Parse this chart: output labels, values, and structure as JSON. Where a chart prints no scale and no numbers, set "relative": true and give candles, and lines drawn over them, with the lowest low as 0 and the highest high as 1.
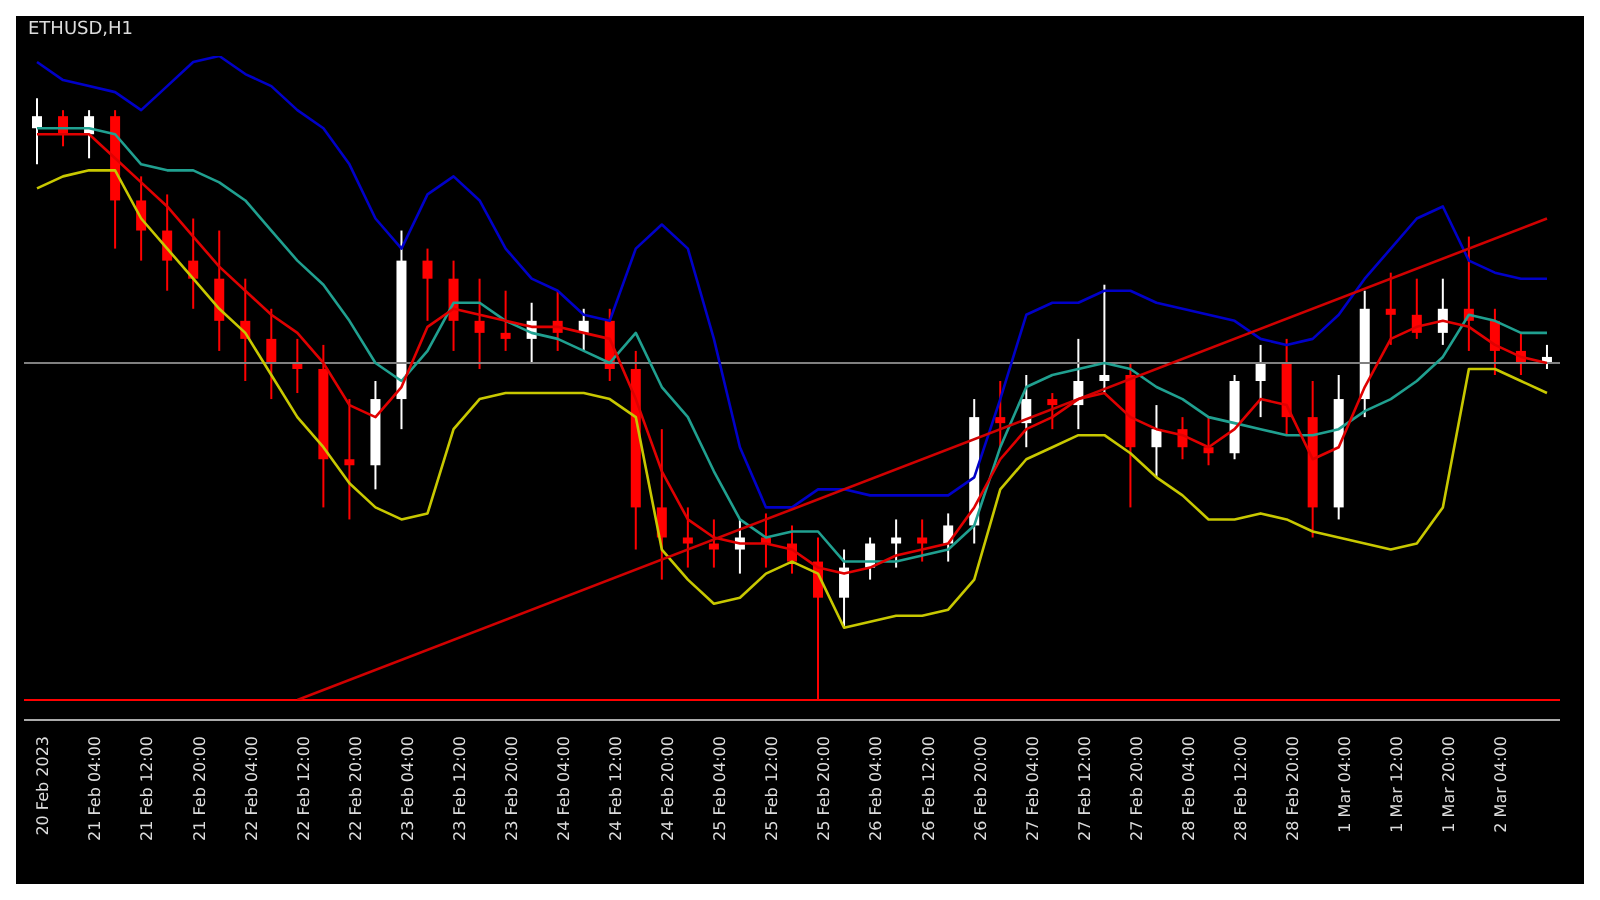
{
  "chart_data": {
    "type": "candlestick",
    "title": "ETHUSD,H1",
    "relative": true,
    "categories": [
      "20 Feb 2023",
      null,
      "21 Feb 04:00",
      null,
      "21 Feb 12:00",
      null,
      "21 Feb 20:00",
      null,
      "22 Feb 04:00",
      null,
      "22 Feb 12:00",
      null,
      "22 Feb 20:00",
      null,
      "23 Feb 04:00",
      null,
      "23 Feb 12:00",
      null,
      "23 Feb 20:00",
      null,
      "24 Feb 04:00",
      null,
      "24 Feb 12:00",
      null,
      "24 Feb 20:00",
      null,
      "25 Feb 04:00",
      null,
      "25 Feb 12:00",
      null,
      "25 Feb 20:00",
      null,
      "26 Feb 04:00",
      null,
      "26 Feb 12:00",
      null,
      "26 Feb 20:00",
      null,
      "27 Feb 04:00",
      null,
      "27 Feb 12:00",
      null,
      "27 Feb 20:00",
      null,
      "28 Feb 04:00",
      null,
      "28 Feb 12:00",
      null,
      "28 Feb 20:00",
      null,
      "1 Mar 04:00",
      null,
      "1 Mar 12:00",
      null,
      "1 Mar 20:00",
      null,
      "2 Mar 04:00",
      null,
      null
    ],
    "ohlc": [
      [
        0.95,
        1,
        0.89,
        0.97
      ],
      [
        0.97,
        0.98,
        0.92,
        0.94
      ],
      [
        0.94,
        0.98,
        0.9,
        0.97
      ],
      [
        0.97,
        0.98,
        0.75,
        0.83
      ],
      [
        0.83,
        0.87,
        0.73,
        0.78
      ],
      [
        0.78,
        0.84,
        0.68,
        0.73
      ],
      [
        0.73,
        0.8,
        0.65,
        0.7
      ],
      [
        0.7,
        0.78,
        0.58,
        0.63
      ],
      [
        0.63,
        0.7,
        0.53,
        0.6
      ],
      [
        0.6,
        0.65,
        0.5,
        0.56
      ],
      [
        0.56,
        0.6,
        0.51,
        0.55
      ],
      [
        0.55,
        0.59,
        0.32,
        0.4
      ],
      [
        0.4,
        0.5,
        0.3,
        0.39
      ],
      [
        0.39,
        0.53,
        0.35,
        0.5
      ],
      [
        0.5,
        0.78,
        0.45,
        0.73
      ],
      [
        0.73,
        0.75,
        0.63,
        0.7
      ],
      [
        0.7,
        0.73,
        0.58,
        0.63
      ],
      [
        0.63,
        0.7,
        0.55,
        0.61
      ],
      [
        0.61,
        0.68,
        0.58,
        0.6
      ],
      [
        0.6,
        0.66,
        0.56,
        0.63
      ],
      [
        0.63,
        0.68,
        0.58,
        0.61
      ],
      [
        0.61,
        0.65,
        0.58,
        0.63
      ],
      [
        0.63,
        0.65,
        0.53,
        0.55
      ],
      [
        0.55,
        0.58,
        0.25,
        0.32
      ],
      [
        0.32,
        0.45,
        0.2,
        0.27
      ],
      [
        0.27,
        0.32,
        0.22,
        0.26
      ],
      [
        0.26,
        0.3,
        0.22,
        0.25
      ],
      [
        0.25,
        0.3,
        0.21,
        0.27
      ],
      [
        0.27,
        0.31,
        0.22,
        0.26
      ],
      [
        0.26,
        0.29,
        0.21,
        0.23
      ],
      [
        0.23,
        0.27,
        0,
        0.17
      ],
      [
        0.17,
        0.25,
        0.12,
        0.22
      ],
      [
        0.22,
        0.27,
        0.2,
        0.26
      ],
      [
        0.26,
        0.3,
        0.22,
        0.27
      ],
      [
        0.27,
        0.3,
        0.23,
        0.26
      ],
      [
        0.26,
        0.31,
        0.23,
        0.29
      ],
      [
        0.29,
        0.5,
        0.26,
        0.47
      ],
      [
        0.47,
        0.53,
        0.42,
        0.46
      ],
      [
        0.46,
        0.54,
        0.42,
        0.5
      ],
      [
        0.5,
        0.51,
        0.45,
        0.49
      ],
      [
        0.49,
        0.6,
        0.45,
        0.53
      ],
      [
        0.53,
        0.69,
        0.51,
        0.54
      ],
      [
        0.54,
        0.56,
        0.32,
        0.42
      ],
      [
        0.42,
        0.49,
        0.37,
        0.45
      ],
      [
        0.45,
        0.47,
        0.4,
        0.42
      ],
      [
        0.42,
        0.47,
        0.39,
        0.41
      ],
      [
        0.41,
        0.54,
        0.4,
        0.53
      ],
      [
        0.53,
        0.59,
        0.47,
        0.56
      ],
      [
        0.56,
        0.6,
        0.44,
        0.47
      ],
      [
        0.47,
        0.53,
        0.27,
        0.32
      ],
      [
        0.32,
        0.54,
        0.3,
        0.5
      ],
      [
        0.5,
        0.68,
        0.47,
        0.65
      ],
      [
        0.65,
        0.71,
        0.59,
        0.64
      ],
      [
        0.64,
        0.7,
        0.6,
        0.61
      ],
      [
        0.61,
        0.7,
        0.59,
        0.65
      ],
      [
        0.65,
        0.77,
        0.58,
        0.63
      ],
      [
        0.63,
        0.65,
        0.54,
        0.58
      ],
      [
        0.58,
        0.61,
        0.54,
        0.56
      ],
      [
        0.56,
        0.59,
        0.55,
        0.57
      ]
    ],
    "colors": [
      "#ffffff",
      "#ff0000",
      "#ffffff",
      "#ff0000",
      "#ff0000",
      "#ff0000",
      "#ff0000",
      "#ff0000",
      "#ff0000",
      "#ff0000",
      "#ff0000",
      "#ff0000",
      "#ff0000",
      "#ffffff",
      "#ffffff",
      "#ff0000",
      "#ff0000",
      "#ff0000",
      "#ff0000",
      "#ffffff",
      "#ff0000",
      "#ffffff",
      "#ff0000",
      "#ff0000",
      "#ff0000",
      "#ff0000",
      "#ff0000",
      "#ffffff",
      "#ff0000",
      "#ff0000",
      "#ff0000",
      "#ffffff",
      "#ffffff",
      "#ffffff",
      "#ff0000",
      "#ffffff",
      "#ffffff",
      "#ff0000",
      "#ffffff",
      "#ff0000",
      "#ffffff",
      "#ffffff",
      "#ff0000",
      "#ffffff",
      "#ff0000",
      "#ff0000",
      "#ffffff",
      "#ffffff",
      "#ff0000",
      "#ff0000",
      "#ffffff",
      "#ffffff",
      "#ff0000",
      "#ff0000",
      "#ffffff",
      "#ff0000",
      "#ff0000",
      "#ff0000",
      "#ffffff"
    ],
    "series": [
      {
        "type": "line",
        "color": "#0000c8",
        "values": [
          1.06,
          1.03,
          1.02,
          1.01,
          0.98,
          1.02,
          1.06,
          1.07,
          1.04,
          1.02,
          0.98,
          0.95,
          0.89,
          0.8,
          0.75,
          0.84,
          0.87,
          0.83,
          0.75,
          0.7,
          0.68,
          0.64,
          0.63,
          0.75,
          0.79,
          0.75,
          0.6,
          0.42,
          0.32,
          0.32,
          0.35,
          0.35,
          0.34,
          0.34,
          0.34,
          0.34,
          0.37,
          0.5,
          0.64,
          0.66,
          0.66,
          0.68,
          0.68,
          0.66,
          0.65,
          0.64,
          0.63,
          0.6,
          0.59,
          0.6,
          0.64,
          0.7,
          0.75,
          0.8,
          0.82,
          0.73,
          0.71,
          0.7,
          0.7
        ]
      },
      {
        "type": "line",
        "color": "#c8c800",
        "values": [
          0.85,
          0.87,
          0.88,
          0.88,
          0.8,
          0.75,
          0.7,
          0.65,
          0.61,
          0.54,
          0.47,
          0.42,
          0.36,
          0.32,
          0.3,
          0.31,
          0.45,
          0.5,
          0.51,
          0.51,
          0.51,
          0.51,
          0.5,
          0.47,
          0.25,
          0.2,
          0.16,
          0.17,
          0.21,
          0.23,
          0.21,
          0.12,
          0.13,
          0.14,
          0.14,
          0.15,
          0.2,
          0.35,
          0.4,
          0.42,
          0.44,
          0.44,
          0.41,
          0.37,
          0.34,
          0.3,
          0.3,
          0.31,
          0.3,
          0.28,
          0.27,
          0.26,
          0.25,
          0.26,
          0.32,
          0.55,
          0.55,
          0.53,
          0.51
        ]
      },
      {
        "type": "line",
        "color": "#20a090",
        "values": [
          0.95,
          0.95,
          0.95,
          0.94,
          0.89,
          0.88,
          0.88,
          0.86,
          0.83,
          0.78,
          0.73,
          0.69,
          0.63,
          0.56,
          0.53,
          0.58,
          0.66,
          0.66,
          0.63,
          0.61,
          0.6,
          0.58,
          0.56,
          0.61,
          0.52,
          0.47,
          0.38,
          0.3,
          0.27,
          0.28,
          0.28,
          0.23,
          0.23,
          0.23,
          0.24,
          0.25,
          0.29,
          0.42,
          0.52,
          0.54,
          0.55,
          0.56,
          0.55,
          0.52,
          0.5,
          0.47,
          0.46,
          0.45,
          0.44,
          0.44,
          0.45,
          0.48,
          0.5,
          0.53,
          0.57,
          0.64,
          0.63,
          0.61,
          0.61
        ]
      },
      {
        "type": "line",
        "color": "#e00000",
        "values": [
          0.94,
          0.94,
          0.94,
          0.9,
          0.86,
          0.82,
          0.77,
          0.72,
          0.68,
          0.64,
          0.61,
          0.56,
          0.49,
          0.47,
          0.52,
          0.62,
          0.65,
          0.64,
          0.63,
          0.62,
          0.62,
          0.61,
          0.6,
          0.5,
          0.38,
          0.3,
          0.27,
          0.26,
          0.26,
          0.25,
          0.22,
          0.21,
          0.22,
          0.24,
          0.25,
          0.26,
          0.32,
          0.4,
          0.45,
          0.47,
          0.5,
          0.51,
          0.47,
          0.45,
          0.44,
          0.42,
          0.45,
          0.5,
          0.49,
          0.4,
          0.42,
          0.52,
          0.6,
          0.62,
          0.63,
          0.62,
          0.59,
          0.57,
          0.56
        ]
      },
      {
        "type": "line",
        "color": "#d00000",
        "values": [
          null,
          null,
          null,
          null,
          null,
          null,
          null,
          null,
          null,
          null,
          0,
          null,
          null,
          null,
          null,
          null,
          null,
          null,
          null,
          null,
          null,
          null,
          null,
          null,
          null,
          null,
          null,
          null,
          null,
          null,
          null,
          null,
          null,
          null,
          null,
          null,
          null,
          null,
          null,
          null,
          null,
          null,
          null,
          null,
          null,
          null,
          null,
          null,
          null,
          null,
          null,
          null,
          null,
          null,
          null,
          null,
          null,
          null,
          0.8
        ]
      }
    ],
    "ref_lines": [
      {
        "axis": "y",
        "value": 0,
        "color": "#ff0000"
      },
      {
        "axis": "y",
        "value": 0.56,
        "color": "#808080"
      }
    ],
    "grid": false,
    "legend": false
  }
}
